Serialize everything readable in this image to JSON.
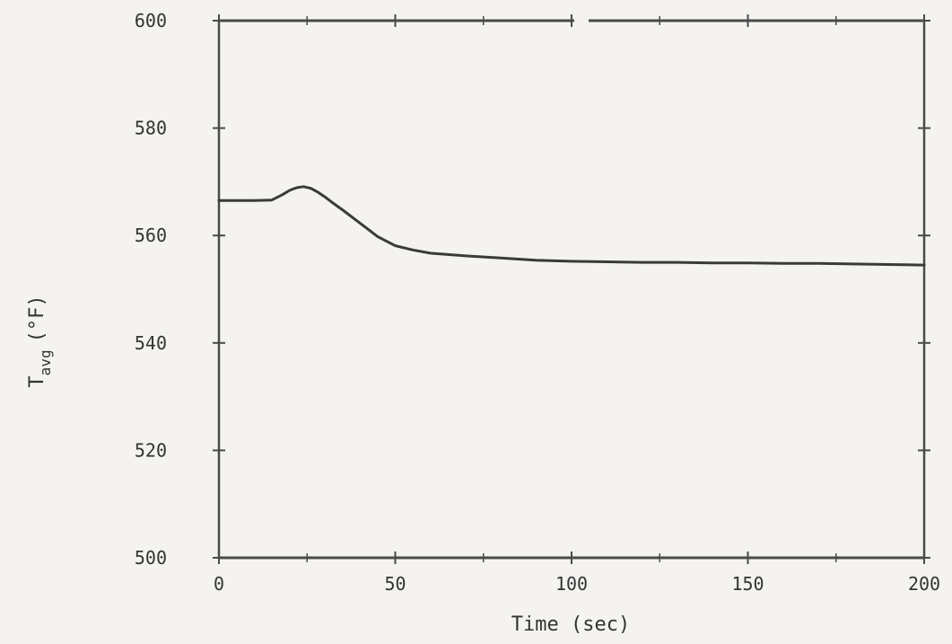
{
  "chart_data": {
    "type": "line",
    "xlabel": "Time (sec)",
    "ylabel_main": "T",
    "ylabel_sub": "avg",
    "ylabel_unit": "(°F)",
    "xlim": [
      0,
      200
    ],
    "ylim": [
      500,
      600
    ],
    "xticks": [
      0,
      50,
      100,
      150,
      200
    ],
    "xtick_labels": [
      "0",
      "50",
      "100",
      "150",
      "200"
    ],
    "yticks": [
      500,
      520,
      540,
      560,
      580,
      600
    ],
    "ytick_labels": [
      "500",
      "520",
      "540",
      "560",
      "580",
      "600"
    ],
    "grid": false,
    "colors": {
      "line": "#3a3a3a",
      "frame": "#4a4a4a",
      "background": "#f4f3f0"
    },
    "series": [
      {
        "x": [
          0,
          5,
          10,
          15,
          18,
          20,
          22,
          24,
          26,
          28,
          30,
          32,
          35,
          40,
          45,
          50,
          55,
          60,
          70,
          80,
          90,
          100,
          110,
          120,
          130,
          140,
          150,
          160,
          170,
          180,
          190,
          200
        ],
        "y": [
          566.5,
          566.5,
          566.5,
          566.6,
          567.6,
          568.4,
          568.9,
          569.1,
          568.8,
          568.1,
          567.2,
          566.2,
          564.8,
          562.3,
          559.8,
          558.1,
          557.3,
          556.7,
          556.2,
          555.8,
          555.4,
          555.2,
          555.1,
          555.0,
          555.0,
          554.9,
          554.9,
          554.8,
          554.8,
          554.7,
          554.6,
          554.5
        ]
      }
    ]
  }
}
